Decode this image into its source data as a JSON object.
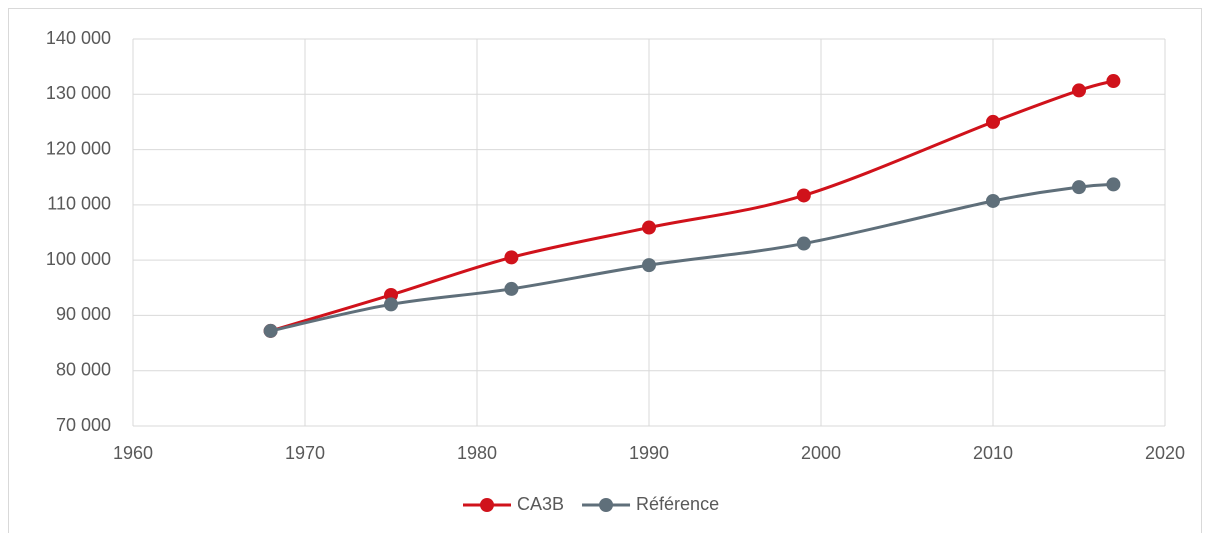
{
  "chart_data": {
    "type": "line",
    "series": [
      {
        "name": "CA3B",
        "color": "#d0121b",
        "x": [
          1968,
          1975,
          1982,
          1990,
          1999,
          2010,
          2015,
          2017
        ],
        "values": [
          87200,
          93700,
          100500,
          105900,
          111700,
          125000,
          130700,
          132400
        ]
      },
      {
        "name": "Référence",
        "color": "#5f6f7a",
        "x": [
          1968,
          1975,
          1982,
          1990,
          1999,
          2010,
          2015,
          2017
        ],
        "values": [
          87200,
          92000,
          94800,
          99100,
          103000,
          110700,
          113200,
          113700
        ]
      }
    ],
    "xlim": [
      1960,
      2020
    ],
    "xticks": [
      1960,
      1970,
      1980,
      1990,
      2000,
      2010,
      2020
    ],
    "ylim": [
      70000,
      140000
    ],
    "yticks": [
      {
        "value": 70000,
        "label": "70 000"
      },
      {
        "value": 80000,
        "label": "80 000"
      },
      {
        "value": 90000,
        "label": "90 000"
      },
      {
        "value": 100000,
        "label": "100 000"
      },
      {
        "value": 110000,
        "label": "110 000"
      },
      {
        "value": 120000,
        "label": "120 000"
      },
      {
        "value": 130000,
        "label": "130 000"
      },
      {
        "value": 140000,
        "label": "140 000"
      }
    ],
    "grid": true,
    "smooth": true,
    "legend": "bottom"
  }
}
